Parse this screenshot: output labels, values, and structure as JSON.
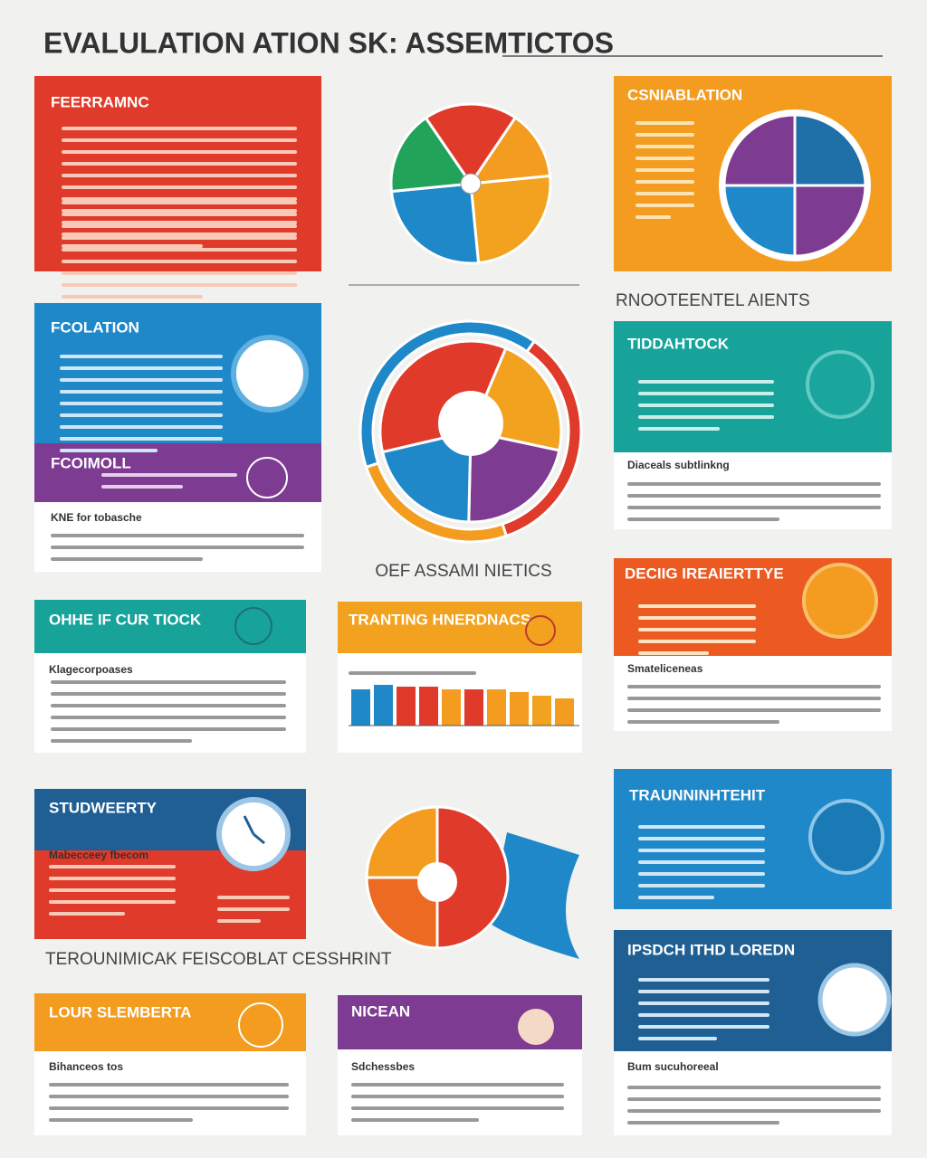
{
  "title": "EVALULATION ATION SK: ASSEMTICTOS",
  "cards": [
    {
      "heading": "FEERRAMNC"
    },
    {
      "heading": "FCOLATION"
    },
    {
      "heading": "FCOIMOLL",
      "subheading": "KNE for tobasche"
    },
    {
      "heading": "OHHE IF CUR TIOCK",
      "subheading": "Klagecorpoases"
    },
    {
      "heading": "STUDWEERTY",
      "subheading": "Mabecceey fbecom"
    },
    {
      "heading": "LOUR SLEMBERTA",
      "subheading": "Bihanceos tos"
    },
    {
      "heading": "TRANTING HNERDNACS"
    },
    {
      "heading": "NICEAN",
      "subheading": "Sdchessbes"
    },
    {
      "heading": "CSNIABLATION"
    },
    {
      "heading": "TIDDAHTOCK",
      "subheading": "Diaceals subtlinkng"
    },
    {
      "heading": "DECIIG IREAIERTTYE",
      "subheading": "Smateliceneas"
    },
    {
      "heading": "TRAUNNINHTEHIT"
    },
    {
      "heading": "IPSDCH ITHD LOREDN",
      "subheading": "Bum sucuhoreeal"
    }
  ],
  "captions": [
    "RNOOTEENTEL AIENTS",
    "OEF ASSAMI NIETICS",
    "TEROUNIMICAK FEISCOBLAT CESSHRINT"
  ],
  "pies": [
    {
      "values": [
        19,
        14,
        25,
        25,
        17
      ],
      "colors": [
        "#e03a2a",
        "#f39c1f",
        "#f2a21e",
        "#1f88c9",
        "#21a35a"
      ]
    },
    {
      "values": [
        40,
        35,
        25
      ],
      "colors": [
        "#1f88c9",
        "#e03a2a",
        "#f39c1f"
      ]
    },
    {
      "values": [
        35,
        22,
        22,
        21
      ],
      "colors": [
        "#e03a2a",
        "#f2a21e",
        "#7e3b92",
        "#1f88c9"
      ]
    },
    {
      "values": [
        25,
        25,
        25,
        25
      ],
      "colors": [
        "#7e3b92",
        "#1f6fa8",
        "#7e3b92",
        "#1f88c9"
      ]
    },
    {
      "values": [
        25,
        50,
        25
      ],
      "colors": [
        "#f39c1f",
        "#e03a2a",
        "#ec6a22"
      ]
    }
  ],
  "bars": {
    "values": [
      40,
      45,
      43,
      43,
      40,
      40,
      40,
      37,
      33,
      30
    ],
    "colors": [
      "#1f88c9",
      "#1f88c9",
      "#e03a2a",
      "#e03a2a",
      "#f39c1f",
      "#e03a2a",
      "#f39c1f",
      "#f39c1f",
      "#f2a21e",
      "#f39c1f"
    ]
  }
}
